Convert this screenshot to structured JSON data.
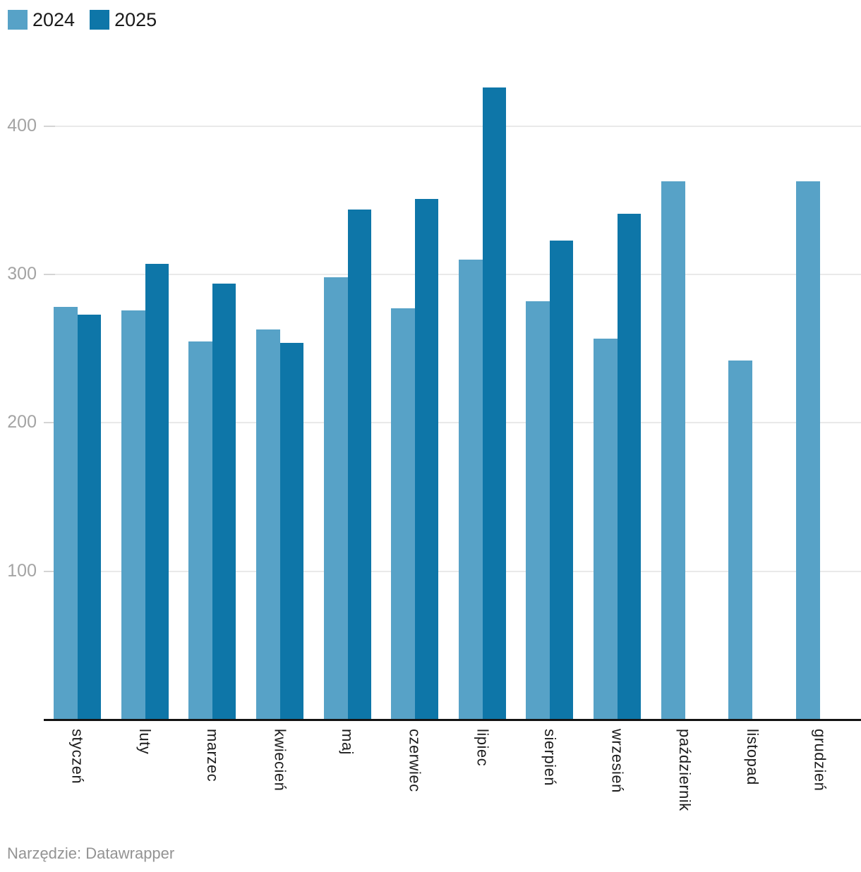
{
  "chart_data": {
    "type": "bar",
    "title": "",
    "xlabel": "",
    "ylabel": "",
    "categories": [
      "styczeń",
      "luty",
      "marzec",
      "kwiecień",
      "maj",
      "czerwiec",
      "lipiec",
      "sierpień",
      "wrzesień",
      "październik",
      "listopad",
      "grudzień"
    ],
    "series": [
      {
        "name": "2024",
        "color": "#57a2c7",
        "values": [
          278,
          276,
          255,
          263,
          298,
          277,
          310,
          282,
          257,
          363,
          242,
          363
        ]
      },
      {
        "name": "2025",
        "color": "#0e76a8",
        "values": [
          273,
          307,
          294,
          254,
          344,
          351,
          426,
          323,
          341,
          null,
          null,
          null
        ]
      }
    ],
    "y_ticks": [
      100,
      200,
      300,
      400
    ],
    "ylim": [
      0,
      440
    ],
    "grid": "horizontal",
    "legend_position": "top-left"
  },
  "footer": {
    "text": "Narzędzie: Datawrapper"
  },
  "colors": {
    "series_2024": "#57a2c7",
    "series_2025": "#0e76a8",
    "gridline": "#e9e9e9",
    "tick_dash": "#d4d4d4",
    "axis_line": "#131313",
    "y_label": "#a4a4a4",
    "x_label": "#1c1c1c",
    "legend_text": "#1a1a1a",
    "footer_text": "#939393"
  }
}
